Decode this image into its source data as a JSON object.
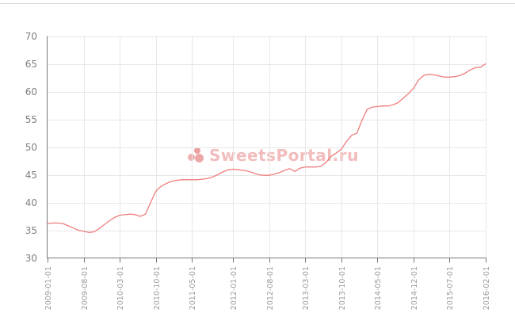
{
  "watermark": {
    "text": "SweetsPortal.ru",
    "logo_icon": "berries-dots-logo",
    "color": "#de5858"
  },
  "chart_data": {
    "type": "line",
    "title": "",
    "xlabel": "",
    "ylabel": "",
    "x_interval": "monthly",
    "x_start": "2009-01-01",
    "x_end": "2016-02-01",
    "x_tick_labels": [
      "2009-01-01",
      "2009-08-01",
      "2010-03-01",
      "2010-10-01",
      "2011-05-01",
      "2012-01-01",
      "2012-08-01",
      "2013-03-01",
      "2013-10-01",
      "2014-05-01",
      "2014-12-01",
      "2015-07-01",
      "2016-02-01"
    ],
    "x_tick_indices": [
      0,
      7,
      14,
      21,
      28,
      36,
      43,
      50,
      57,
      64,
      71,
      78,
      85
    ],
    "y_tick_labels": [
      "30",
      "35",
      "40",
      "45",
      "50",
      "55",
      "60",
      "65",
      "70"
    ],
    "ylim": [
      30,
      70
    ],
    "y_tick_step": 5,
    "grid": true,
    "legend": "none",
    "values": [
      36.2,
      36.3,
      36.3,
      36.2,
      35.8,
      35.4,
      35.0,
      34.8,
      34.6,
      34.7,
      35.3,
      36.0,
      36.7,
      37.3,
      37.7,
      37.8,
      37.9,
      37.8,
      37.5,
      37.9,
      40.0,
      42.0,
      42.9,
      43.4,
      43.8,
      44.0,
      44.1,
      44.1,
      44.1,
      44.1,
      44.2,
      44.3,
      44.6,
      45.0,
      45.5,
      45.9,
      46.0,
      45.9,
      45.8,
      45.6,
      45.3,
      45.0,
      44.9,
      44.9,
      45.1,
      45.4,
      45.8,
      46.1,
      45.6,
      46.2,
      46.4,
      46.4,
      46.4,
      46.5,
      47.2,
      48.3,
      48.9,
      49.6,
      51.0,
      52.1,
      52.5,
      54.8,
      56.8,
      57.2,
      57.3,
      57.4,
      57.4,
      57.6,
      58.0,
      58.8,
      59.6,
      60.6,
      62.1,
      62.9,
      63.1,
      63.0,
      62.8,
      62.6,
      62.6,
      62.7,
      62.9,
      63.3,
      63.9,
      64.3,
      64.4,
      65.0
    ],
    "line_color": "#ef7d7d",
    "axis_color": "#787878",
    "grid_color": "#e7e7e7",
    "y_label_color": "#7e7e7e",
    "x_label_color": "#9b9b9b"
  }
}
